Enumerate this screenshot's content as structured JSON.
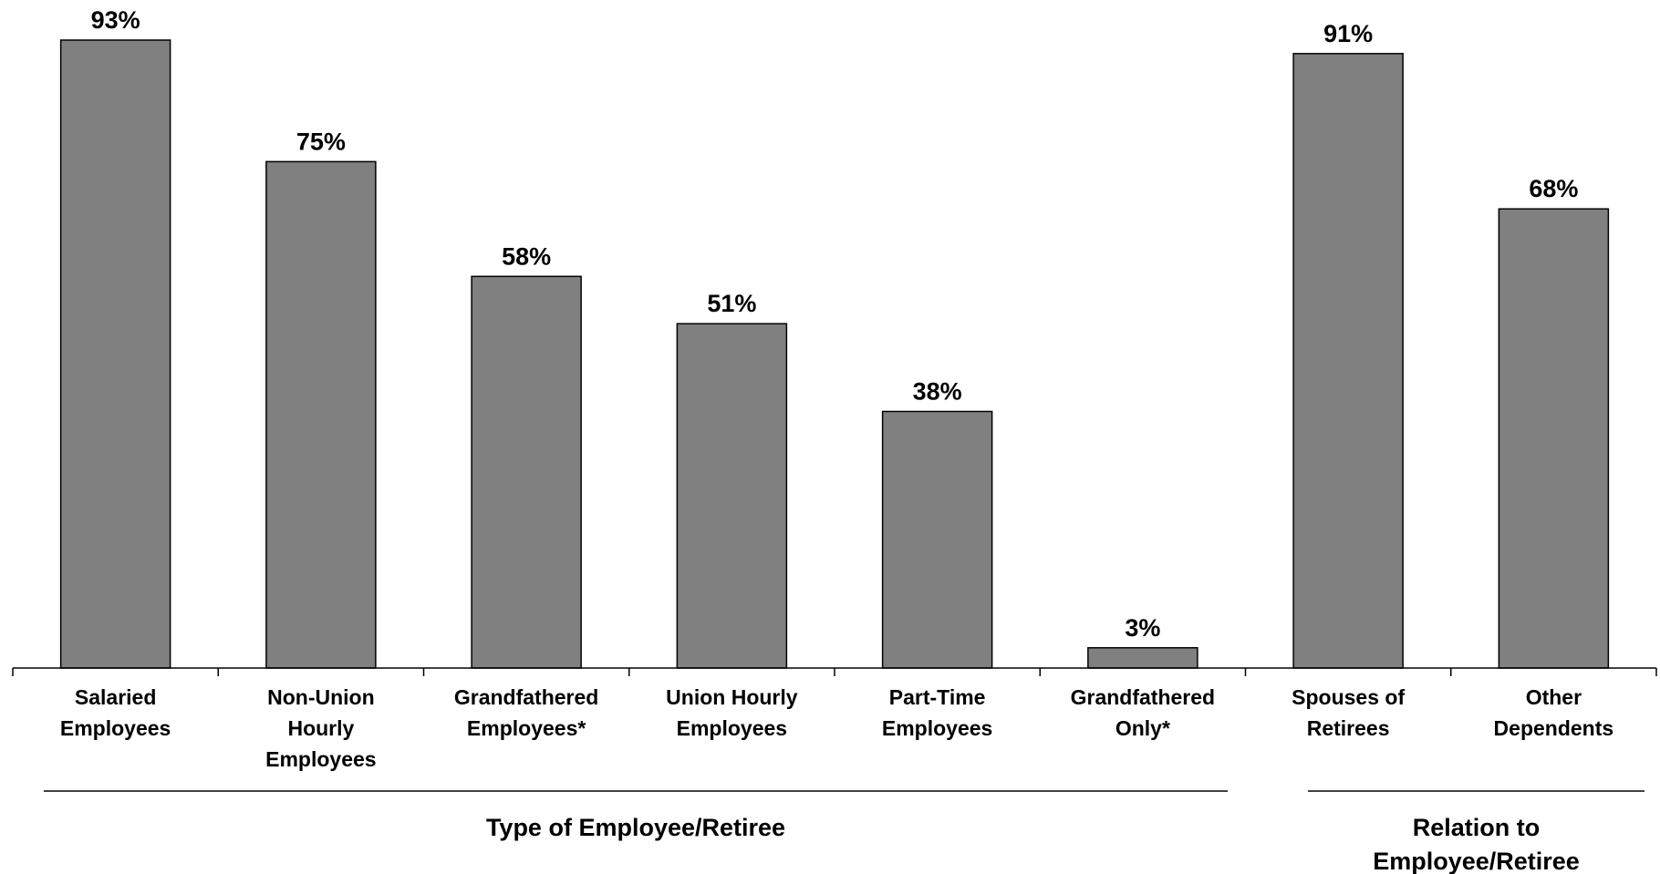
{
  "chart_data": {
    "type": "bar",
    "categories": [
      [
        "Salaried",
        "Employees"
      ],
      [
        "Non-Union",
        "Hourly",
        "Employees"
      ],
      [
        "Grandfathered",
        "Employees*"
      ],
      [
        "Union Hourly",
        "Employees"
      ],
      [
        "Part-Time",
        "Employees"
      ],
      [
        "Grandfathered",
        "Only*"
      ],
      [
        "Spouses of",
        "Retirees"
      ],
      [
        "Other",
        "Dependents"
      ]
    ],
    "values": [
      93,
      75,
      58,
      51,
      38,
      3,
      91,
      68
    ],
    "data_labels": [
      "93%",
      "75%",
      "58%",
      "51%",
      "38%",
      "3%",
      "91%",
      "68%"
    ],
    "ylim": [
      0,
      100
    ],
    "grid": false,
    "legend": "none",
    "bar_color": "#808080",
    "groups": [
      {
        "label": [
          "Type of Employee/Retiree"
        ],
        "categories": [
          0,
          1,
          2,
          3,
          4,
          5
        ]
      },
      {
        "label": [
          "Relation to",
          "Employee/Retiree"
        ],
        "categories": [
          6,
          7
        ]
      }
    ]
  }
}
